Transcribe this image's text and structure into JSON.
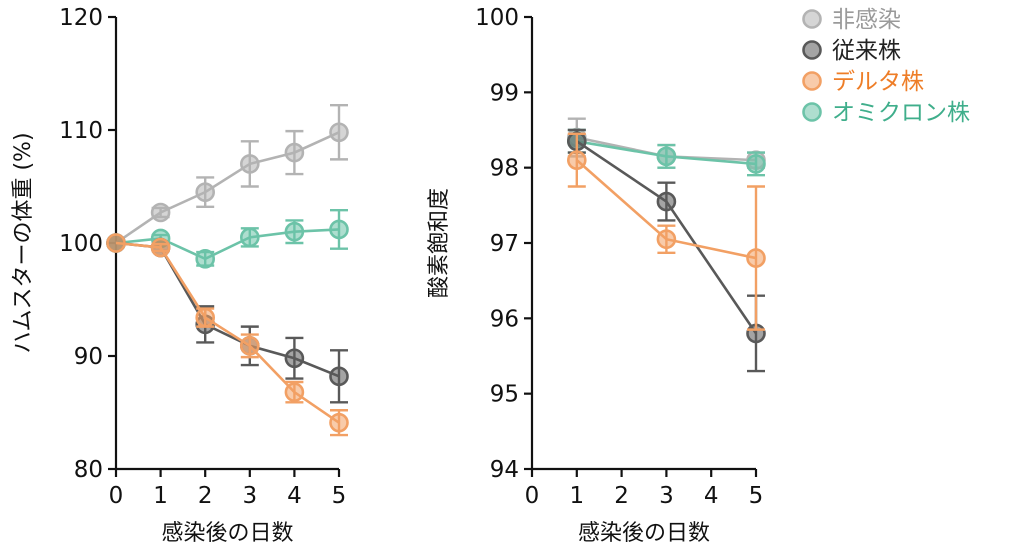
{
  "colors": {
    "uninfected": "#b3b3b3",
    "ancestral": "#595959",
    "delta": "#f2a064",
    "omicron": "#6cc3a8",
    "legend_text_uninfected": "#9a9a9a",
    "legend_text_ancestral": "#222222",
    "legend_text_delta": "#ee7d27",
    "legend_text_omicron": "#3fae8b"
  },
  "legend": {
    "position": "top-right",
    "items": [
      {
        "key": "uninfected",
        "label": "非感染"
      },
      {
        "key": "ancestral",
        "label": "従来株"
      },
      {
        "key": "delta",
        "label": "デルタ株"
      },
      {
        "key": "omicron",
        "label": "オミクロン株"
      }
    ]
  },
  "chart_data": [
    {
      "type": "line",
      "xlabel": "感染後の日数",
      "ylabel": "ハムスターの体重 (%)",
      "xlim": [
        0,
        5
      ],
      "ylim": [
        80,
        120
      ],
      "x_ticks": [
        "0",
        "1",
        "2",
        "3",
        "4",
        "5"
      ],
      "y_ticks": [
        "80",
        "90",
        "100",
        "110",
        "120"
      ],
      "grid": false,
      "series": [
        {
          "key": "uninfected",
          "name": "非感染",
          "x": [
            0,
            1,
            2,
            3,
            4,
            5
          ],
          "y": [
            100,
            102.7,
            104.5,
            107.0,
            108.0,
            109.8
          ],
          "err": [
            0,
            0.4,
            1.3,
            2.0,
            1.9,
            2.4
          ]
        },
        {
          "key": "omicron",
          "name": "オミクロン株",
          "x": [
            0,
            1,
            2,
            3,
            4,
            5
          ],
          "y": [
            100,
            100.4,
            98.6,
            100.5,
            101.0,
            101.2
          ],
          "err": [
            0,
            0.3,
            0.6,
            0.8,
            1.0,
            1.7
          ]
        },
        {
          "key": "ancestral",
          "name": "従来株",
          "x": [
            0,
            1,
            2,
            3,
            4,
            5
          ],
          "y": [
            100,
            99.6,
            92.8,
            90.9,
            89.8,
            88.2
          ],
          "err": [
            0,
            0.3,
            1.6,
            1.7,
            1.8,
            2.3
          ]
        },
        {
          "key": "delta",
          "name": "デルタ株",
          "x": [
            0,
            1,
            2,
            3,
            4,
            5
          ],
          "y": [
            100,
            99.6,
            93.4,
            90.9,
            86.8,
            84.1
          ],
          "err": [
            0,
            0.3,
            0.8,
            1.0,
            0.9,
            1.1
          ]
        }
      ]
    },
    {
      "type": "line",
      "xlabel": "感染後の日数",
      "ylabel": "酸素飽和度",
      "xlim": [
        0,
        5
      ],
      "ylim": [
        94,
        100
      ],
      "x_ticks": [
        "0",
        "1",
        "2",
        "3",
        "4",
        "5"
      ],
      "y_ticks": [
        "94",
        "95",
        "96",
        "97",
        "98",
        "99",
        "100"
      ],
      "grid": false,
      "series": [
        {
          "key": "uninfected",
          "name": "非感染",
          "x": [
            1,
            3,
            5
          ],
          "y": [
            98.4,
            98.15,
            98.1
          ],
          "err": [
            0.25,
            0.15,
            0.1
          ]
        },
        {
          "key": "omicron",
          "name": "オミクロン株",
          "x": [
            1,
            3,
            5
          ],
          "y": [
            98.35,
            98.15,
            98.05
          ],
          "err": [
            0.15,
            0.15,
            0.15
          ]
        },
        {
          "key": "ancestral",
          "name": "従来株",
          "x": [
            1,
            3,
            5
          ],
          "y": [
            98.35,
            97.55,
            95.8
          ],
          "err": [
            0.15,
            0.25,
            0.5
          ]
        },
        {
          "key": "delta",
          "name": "デルタ株",
          "x": [
            1,
            3,
            5
          ],
          "y": [
            98.1,
            97.05,
            96.8
          ],
          "err": [
            0.35,
            0.18,
            0.95
          ]
        }
      ]
    }
  ]
}
